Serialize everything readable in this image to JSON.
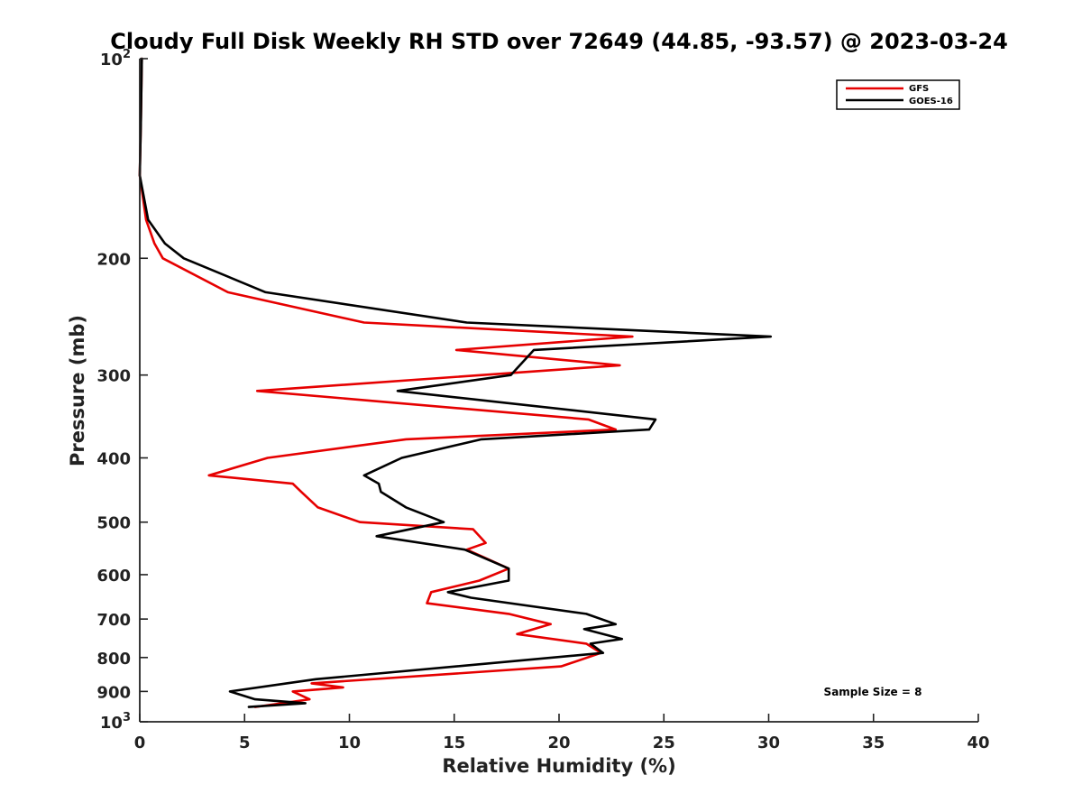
{
  "chart_data": {
    "type": "line",
    "title": "Cloudy Full Disk Weekly RH STD over 72649 (44.85, -93.57) @ 2023-03-24",
    "xlabel": "Relative Humidity (%)",
    "ylabel": "Pressure (mb)",
    "xlim": [
      0,
      40
    ],
    "ylim": [
      100,
      1000
    ],
    "y_scale": "log",
    "y_reversed": true,
    "grid": false,
    "legend_position": "top-right",
    "x_ticks": [
      "0",
      "5",
      "10",
      "15",
      "20",
      "25",
      "30",
      "35",
      "40"
    ],
    "y_ticks": [
      {
        "value": 100,
        "base": "10",
        "exp": "2"
      },
      {
        "value": 200,
        "label": "200"
      },
      {
        "value": 300,
        "label": "300"
      },
      {
        "value": 400,
        "label": "400"
      },
      {
        "value": 500,
        "label": "500"
      },
      {
        "value": 600,
        "label": "600"
      },
      {
        "value": 700,
        "label": "700"
      },
      {
        "value": 800,
        "label": "800"
      },
      {
        "value": 900,
        "label": "900"
      },
      {
        "value": 1000,
        "base": "10",
        "exp": "3"
      }
    ],
    "annotation": "Sample Size = 8",
    "series": [
      {
        "name": "GFS",
        "color": "#e60000",
        "points": [
          [
            0.1,
            100
          ],
          [
            0.05,
            125
          ],
          [
            0.0,
            150
          ],
          [
            0.3,
            175
          ],
          [
            0.7,
            190
          ],
          [
            1.1,
            200
          ],
          [
            4.2,
            225
          ],
          [
            10.7,
            250
          ],
          [
            23.5,
            262.5
          ],
          [
            15.1,
            275
          ],
          [
            22.9,
            290
          ],
          [
            5.6,
            317
          ],
          [
            21.4,
            350
          ],
          [
            22.7,
            362.5
          ],
          [
            12.7,
            375
          ],
          [
            6.1,
            400
          ],
          [
            3.3,
            425
          ],
          [
            7.3,
            437.5
          ],
          [
            7.7,
            450
          ],
          [
            8.5,
            475
          ],
          [
            10.5,
            500
          ],
          [
            15.9,
            512.5
          ],
          [
            16.5,
            537.5
          ],
          [
            15.6,
            550
          ],
          [
            17.6,
            587.5
          ],
          [
            16.2,
            612.5
          ],
          [
            13.9,
            637.5
          ],
          [
            13.7,
            662.5
          ],
          [
            17.6,
            687.5
          ],
          [
            19.6,
            712.5
          ],
          [
            18.0,
            737.5
          ],
          [
            21.3,
            762.5
          ],
          [
            22.0,
            787.5
          ],
          [
            20.1,
            825
          ],
          [
            8.2,
            875
          ],
          [
            9.7,
            887.5
          ],
          [
            7.3,
            900
          ],
          [
            8.1,
            925
          ],
          [
            5.5,
            950
          ]
        ]
      },
      {
        "name": "GOES-16",
        "color": "#000000",
        "points": [
          [
            0.1,
            100
          ],
          [
            0.05,
            125
          ],
          [
            0.0,
            150
          ],
          [
            0.4,
            175
          ],
          [
            1.2,
            190
          ],
          [
            2.1,
            200
          ],
          [
            6.0,
            225
          ],
          [
            15.6,
            250
          ],
          [
            30.1,
            262.5
          ],
          [
            18.8,
            275
          ],
          [
            17.7,
            300
          ],
          [
            12.3,
            317
          ],
          [
            24.6,
            350
          ],
          [
            24.3,
            362.5
          ],
          [
            16.3,
            375
          ],
          [
            12.5,
            400
          ],
          [
            10.7,
            425
          ],
          [
            11.4,
            437.5
          ],
          [
            11.5,
            450
          ],
          [
            12.7,
            475
          ],
          [
            14.5,
            500
          ],
          [
            11.3,
            525
          ],
          [
            15.5,
            550
          ],
          [
            17.6,
            587.5
          ],
          [
            17.6,
            612.5
          ],
          [
            14.7,
            637.5
          ],
          [
            15.8,
            650
          ],
          [
            21.3,
            687.5
          ],
          [
            22.7,
            712.5
          ],
          [
            21.2,
            725
          ],
          [
            23.0,
            750
          ],
          [
            21.5,
            762.5
          ],
          [
            22.1,
            787.5
          ],
          [
            8.4,
            862.5
          ],
          [
            4.3,
            900
          ],
          [
            5.5,
            925
          ],
          [
            7.9,
            937.5
          ],
          [
            5.2,
            950
          ]
        ]
      }
    ]
  }
}
